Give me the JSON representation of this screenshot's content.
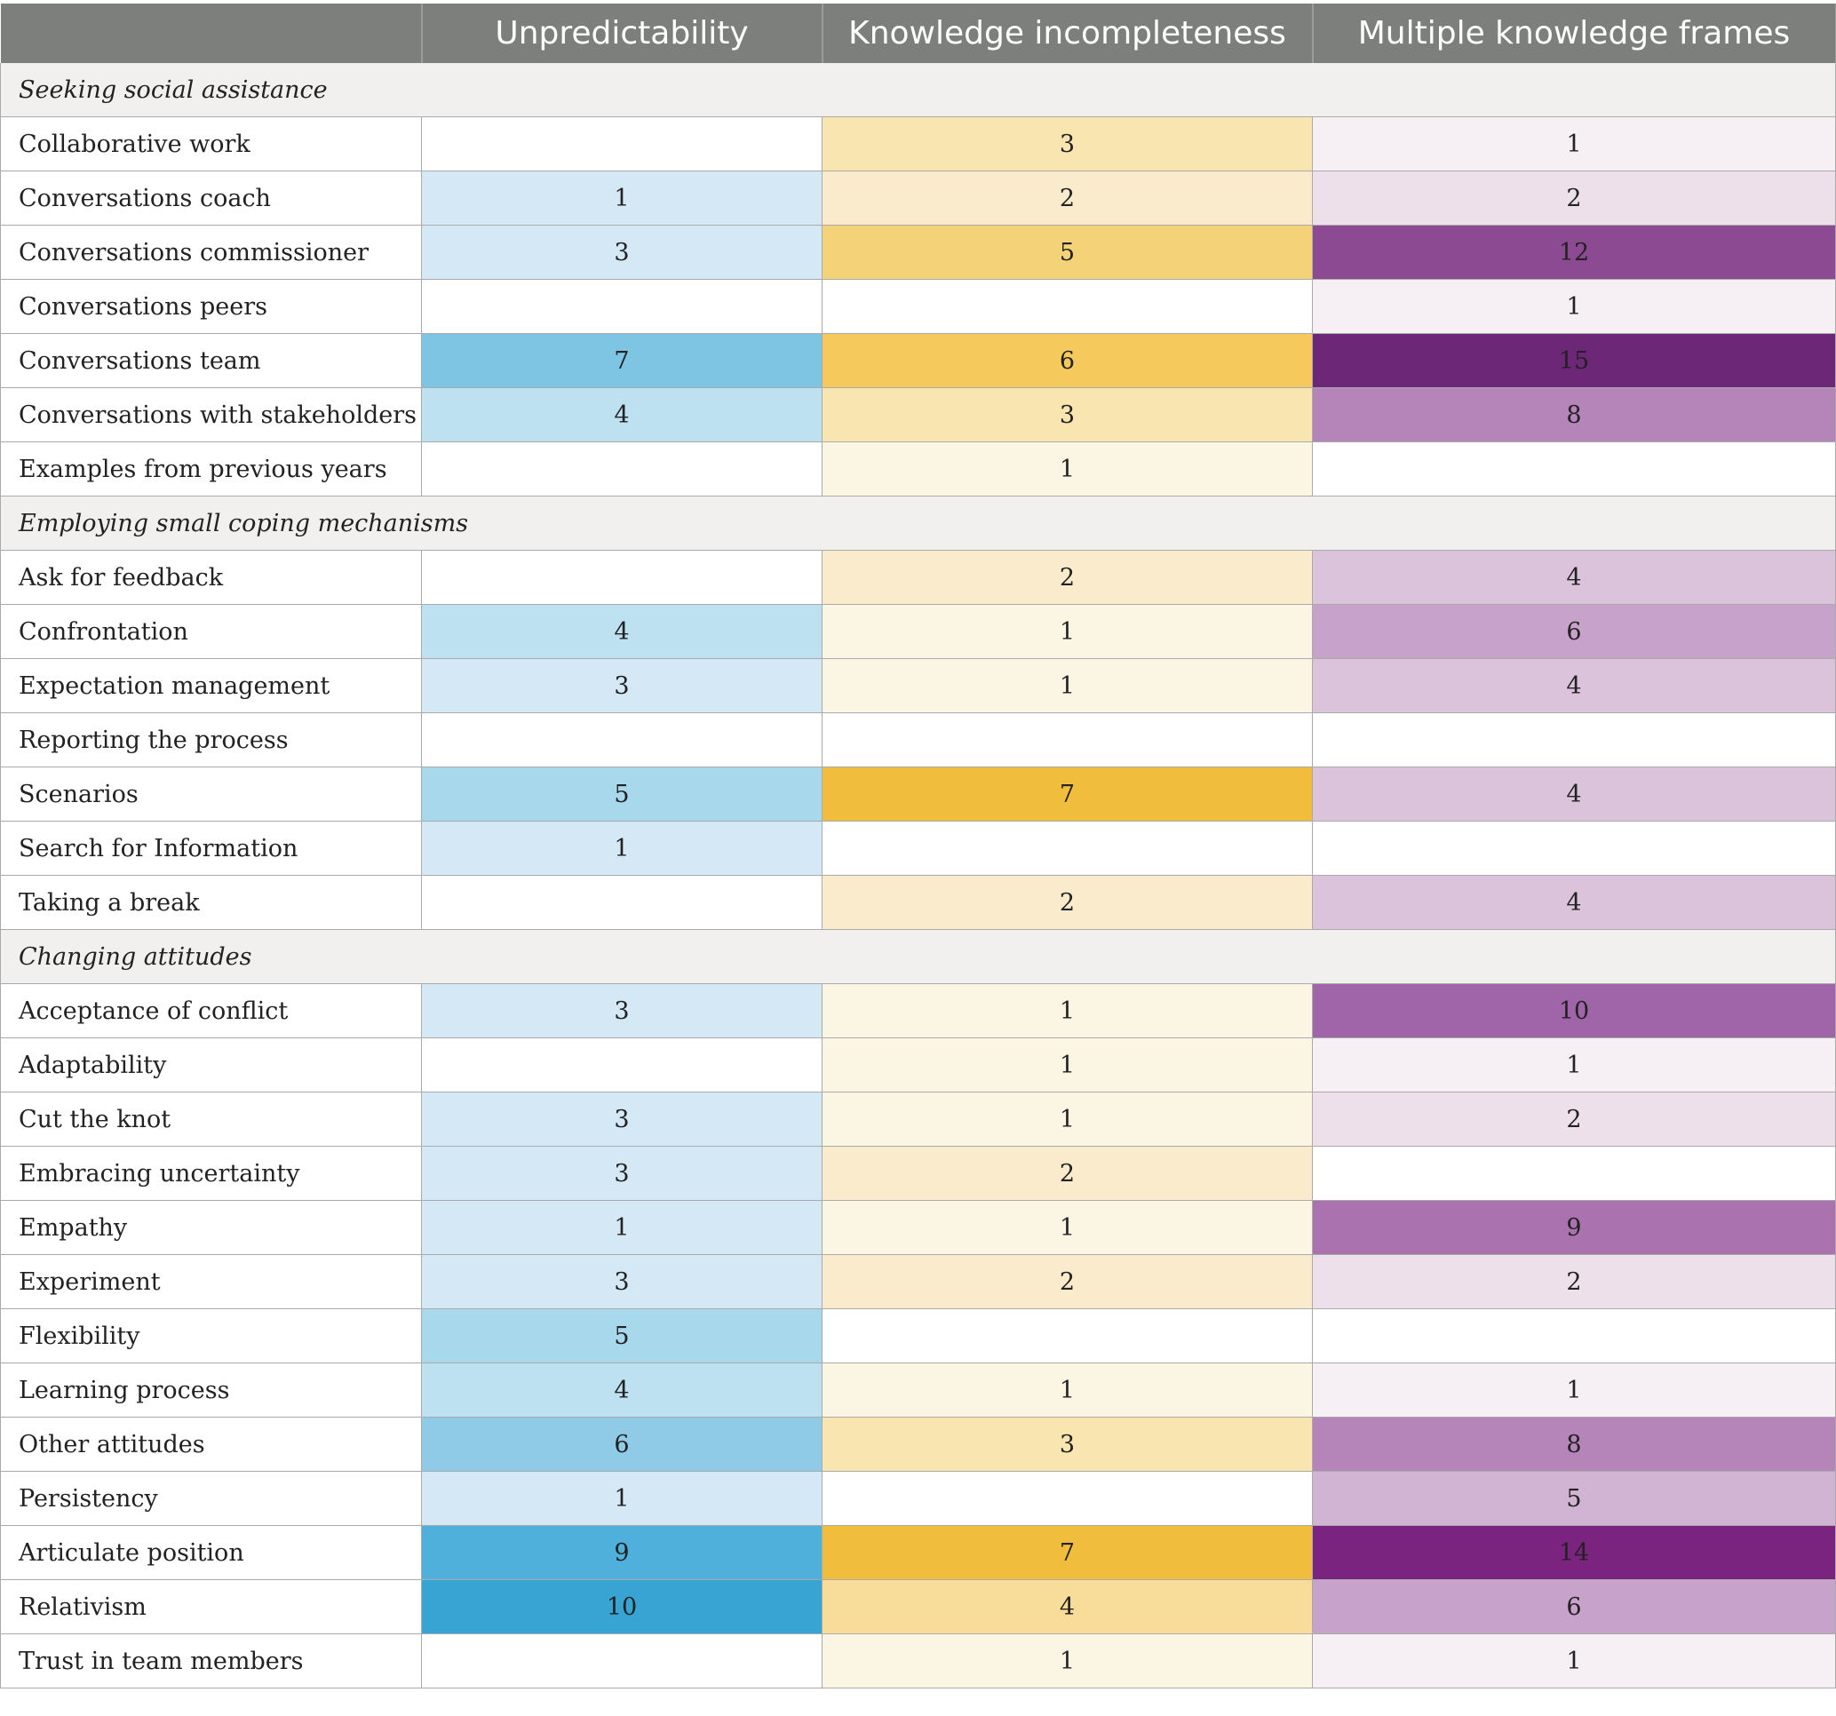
{
  "header": {
    "col0": "",
    "col1": "Unpredictability",
    "col2": "Knowledge incompleteness",
    "col3": "Multiple knowledge frames"
  },
  "colors": {
    "blue": [
      "#ffffff",
      "#d4e9f5",
      "#d4e9f5",
      "#d4e9f5",
      "#bde1f0",
      "#a8d8eb",
      "#8fcbe6",
      "#7ec5e4",
      "#6cbde0",
      "#4fb0dc",
      "#37a4d3"
    ],
    "yellow": [
      "#ffffff",
      "#fbf5e4",
      "#f9ebcb",
      "#f9e5b0",
      "#f7dc9a",
      "#f4d277",
      "#f6c95c",
      "#f0bd3c"
    ],
    "purple": [
      "#ffffff",
      "#f6eff4",
      "#ede0ea",
      "#e6d4e3",
      "#dac3db",
      "#d1b4d3",
      "#c7a2cb",
      "#bc92c3",
      "#b584b8",
      "#ab72b0",
      "#9f65a8",
      "#94549d",
      "#8c4a93",
      "#832f86",
      "#7a247f",
      "#6d2777"
    ]
  },
  "rows": [
    {
      "type": "category",
      "label": "Seeking social assistance"
    },
    {
      "type": "item",
      "label": "Collaborative work",
      "values": [
        "",
        "3",
        "1"
      ]
    },
    {
      "type": "item",
      "label": "Conversations coach",
      "values": [
        "1",
        "2",
        "2"
      ]
    },
    {
      "type": "item",
      "label": "Conversations commissioner",
      "values": [
        "3",
        "5",
        "12"
      ]
    },
    {
      "type": "item",
      "label": "Conversations peers",
      "values": [
        "",
        "",
        "1"
      ]
    },
    {
      "type": "item",
      "label": "Conversations team",
      "values": [
        "7",
        "6",
        "15"
      ]
    },
    {
      "type": "item",
      "label": "Conversations with stakeholders",
      "values": [
        "4",
        "3",
        "8"
      ]
    },
    {
      "type": "item",
      "label": "Examples from previous years",
      "values": [
        "",
        "1",
        ""
      ]
    },
    {
      "type": "category",
      "label": "Employing small coping mechanisms"
    },
    {
      "type": "item",
      "label": "Ask for feedback",
      "values": [
        "",
        "2",
        "4"
      ]
    },
    {
      "type": "item",
      "label": "Confrontation",
      "values": [
        "4",
        "1",
        "6"
      ]
    },
    {
      "type": "item",
      "label": "Expectation management",
      "values": [
        "3",
        "1",
        "4"
      ]
    },
    {
      "type": "item",
      "label": "Reporting the process",
      "values": [
        "",
        "",
        ""
      ]
    },
    {
      "type": "item",
      "label": "Scenarios",
      "values": [
        "5",
        "7",
        "4"
      ]
    },
    {
      "type": "item",
      "label": "Search for Information",
      "values": [
        "1",
        "",
        ""
      ]
    },
    {
      "type": "item",
      "label": "Taking a break",
      "values": [
        "",
        "2",
        "4"
      ]
    },
    {
      "type": "category",
      "label": "Changing attitudes"
    },
    {
      "type": "item",
      "label": "Acceptance of conflict",
      "values": [
        "3",
        "1",
        "10"
      ]
    },
    {
      "type": "item",
      "label": "Adaptability",
      "values": [
        "",
        "1",
        "1"
      ]
    },
    {
      "type": "item",
      "label": "Cut the knot",
      "values": [
        "3",
        "1",
        "2"
      ]
    },
    {
      "type": "item",
      "label": "Embracing uncertainty",
      "values": [
        "3",
        "2",
        ""
      ]
    },
    {
      "type": "item",
      "label": "Empathy",
      "values": [
        "1",
        "1",
        "9"
      ]
    },
    {
      "type": "item",
      "label": "Experiment",
      "values": [
        "3",
        "2",
        "2"
      ]
    },
    {
      "type": "item",
      "label": "Flexibility",
      "values": [
        "5",
        "",
        ""
      ]
    },
    {
      "type": "item",
      "label": "Learning process",
      "values": [
        "4",
        "1",
        "1"
      ]
    },
    {
      "type": "item",
      "label": "Other attitudes",
      "values": [
        "6",
        "3",
        "8"
      ]
    },
    {
      "type": "item",
      "label": "Persistency",
      "values": [
        "1",
        "",
        "5"
      ]
    },
    {
      "type": "item",
      "label": "Articulate position",
      "values": [
        "9",
        "7",
        "14"
      ]
    },
    {
      "type": "item",
      "label": "Relativism",
      "values": [
        "10",
        "4",
        "6"
      ]
    },
    {
      "type": "item",
      "label": "Trust in team members",
      "values": [
        "",
        "1",
        "1"
      ]
    }
  ]
}
